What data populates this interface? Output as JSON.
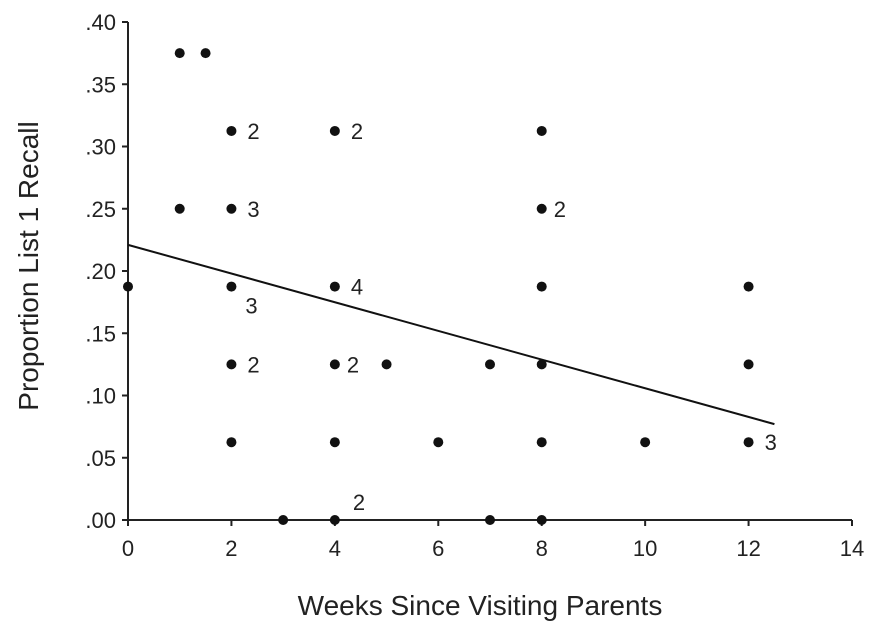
{
  "chart_data": {
    "type": "scatter",
    "xlabel": "Weeks Since Visiting Parents",
    "ylabel": "Proportion List 1 Recall",
    "xlim": [
      0,
      14
    ],
    "ylim": [
      0,
      0.4
    ],
    "x_ticks": [
      0,
      2,
      4,
      6,
      8,
      10,
      12,
      14
    ],
    "x_tick_labels": [
      "0",
      "2",
      "4",
      "6",
      "8",
      "10",
      "12",
      "14"
    ],
    "y_ticks": [
      0,
      0.05,
      0.1,
      0.15,
      0.2,
      0.25,
      0.3,
      0.35,
      0.4
    ],
    "y_tick_labels": [
      ".00",
      ".05",
      ".10",
      ".15",
      ".20",
      ".25",
      ".30",
      ".35",
      ".40"
    ],
    "grid": false,
    "colors": {
      "points": "#111111",
      "line": "#111111",
      "axis": "#222222"
    },
    "points": [
      {
        "x": 0,
        "y": 0.1875
      },
      {
        "x": 1,
        "y": 0.375
      },
      {
        "x": 1.5,
        "y": 0.375
      },
      {
        "x": 1,
        "y": 0.25
      },
      {
        "x": 2,
        "y": 0.3125,
        "count": "2"
      },
      {
        "x": 2,
        "y": 0.25,
        "count": "3"
      },
      {
        "x": 2,
        "y": 0.1875,
        "count": "3"
      },
      {
        "x": 2,
        "y": 0.125,
        "count": "2"
      },
      {
        "x": 2,
        "y": 0.0625
      },
      {
        "x": 3,
        "y": 0
      },
      {
        "x": 4,
        "y": 0.3125,
        "count": "2"
      },
      {
        "x": 4,
        "y": 0.1875,
        "count": "4"
      },
      {
        "x": 4,
        "y": 0.125,
        "count": "2"
      },
      {
        "x": 4,
        "y": 0.0625
      },
      {
        "x": 4,
        "y": 0,
        "count": "2"
      },
      {
        "x": 5,
        "y": 0.125
      },
      {
        "x": 6,
        "y": 0.0625
      },
      {
        "x": 7,
        "y": 0.125
      },
      {
        "x": 7,
        "y": 0
      },
      {
        "x": 8,
        "y": 0.3125
      },
      {
        "x": 8,
        "y": 0.25,
        "count": "2"
      },
      {
        "x": 8,
        "y": 0.1875
      },
      {
        "x": 8,
        "y": 0.125
      },
      {
        "x": 8,
        "y": 0.0625
      },
      {
        "x": 8,
        "y": 0
      },
      {
        "x": 10,
        "y": 0.0625
      },
      {
        "x": 12,
        "y": 0.1875
      },
      {
        "x": 12,
        "y": 0.125
      },
      {
        "x": 12,
        "y": 0.0625,
        "count": "3"
      }
    ],
    "regression_line": {
      "x": [
        0,
        12.5
      ],
      "y": [
        0.221,
        0.077
      ]
    }
  }
}
